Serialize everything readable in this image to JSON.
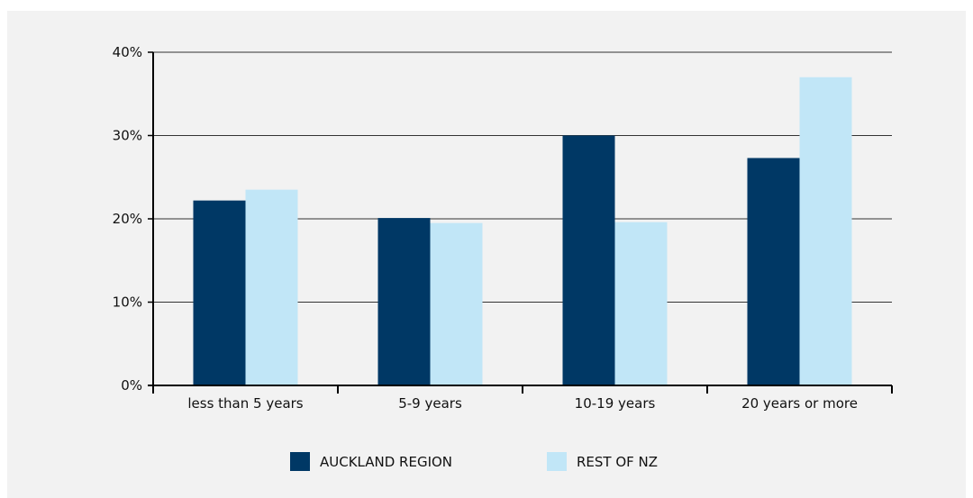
{
  "chart_data": {
    "type": "bar",
    "title": "",
    "xlabel": "",
    "ylabel": "",
    "categories": [
      "less than 5 years",
      "5-9 years",
      "10-19 years",
      "20 years or more"
    ],
    "series": [
      {
        "name": "AUCKLAND REGION",
        "values": [
          22.2,
          20.1,
          30.0,
          27.3
        ],
        "color": "#003865"
      },
      {
        "name": "REST OF NZ",
        "values": [
          23.5,
          19.5,
          19.6,
          37.0
        ],
        "color": "#c1e6f7"
      }
    ],
    "ylim": [
      0,
      40
    ],
    "yticks": [
      0,
      10,
      20,
      30,
      40
    ],
    "ytick_labels": [
      "0%",
      "10%",
      "20%",
      "30%",
      "40%"
    ],
    "grid": true,
    "legend_position": "bottom-center"
  }
}
